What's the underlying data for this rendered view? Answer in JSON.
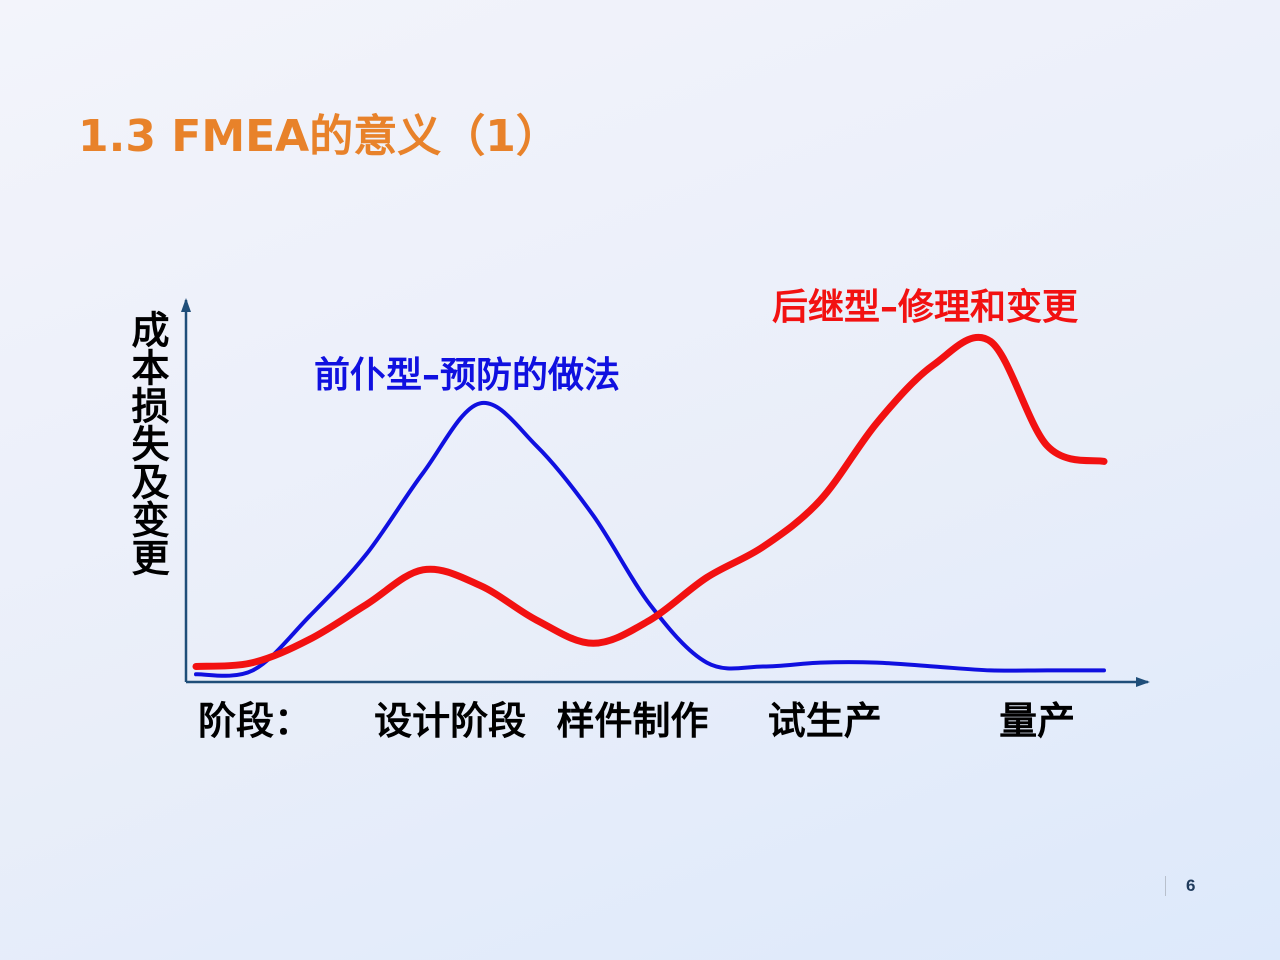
{
  "slide": {
    "title": "1.3 FMEA的意义（1）",
    "page_number": "6"
  },
  "chart_data": {
    "type": "line",
    "title": "",
    "ylabel": "成本损失及变更",
    "xlabel_prefix": "阶段：",
    "categories": [
      "设计阶段",
      "样件制作",
      "试生产",
      "量产"
    ],
    "x": [
      0,
      1,
      2,
      3,
      4,
      5,
      6,
      7,
      8,
      9,
      10,
      11,
      12,
      13,
      14,
      15,
      16
    ],
    "ylim": [
      0,
      10
    ],
    "grid": false,
    "series": [
      {
        "name": "前仆型–预防的做法",
        "color": "#1010e0",
        "values": [
          0.2,
          0.3,
          1.7,
          3.3,
          5.4,
          7.2,
          6.1,
          4.3,
          2.0,
          0.5,
          0.4,
          0.5,
          0.5,
          0.4,
          0.3,
          0.3,
          0.3
        ]
      },
      {
        "name": "后继型–修理和变更",
        "color": "#f21111",
        "values": [
          0.4,
          0.5,
          1.1,
          2.0,
          2.9,
          2.5,
          1.6,
          1.0,
          1.6,
          2.7,
          3.5,
          4.7,
          6.7,
          8.2,
          8.8,
          6.1,
          5.7
        ]
      }
    ]
  }
}
